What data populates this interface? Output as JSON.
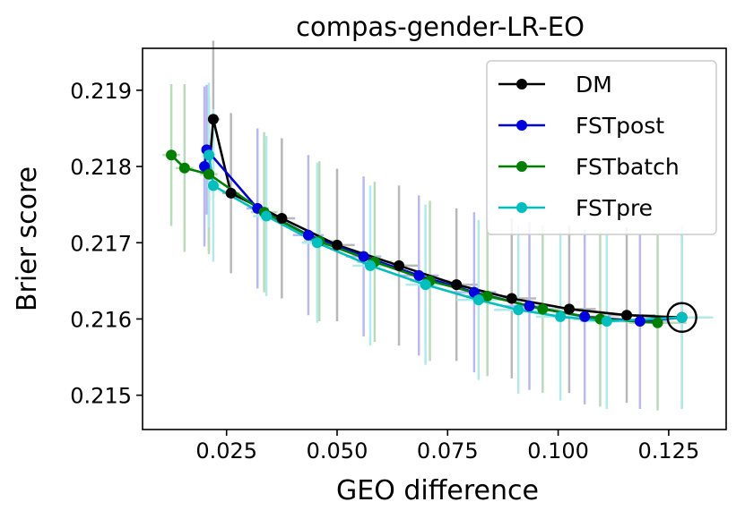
{
  "chart_data": {
    "type": "line",
    "title": "compas-gender-LR-EO",
    "xlabel": "GEO difference",
    "ylabel": "Brier score",
    "xlim": [
      0.006,
      0.138
    ],
    "ylim": [
      0.21455,
      0.21955
    ],
    "xticks": [
      0.025,
      0.05,
      0.075,
      0.1,
      0.125
    ],
    "xtick_labels": [
      "0.025",
      "0.050",
      "0.075",
      "0.100",
      "0.125"
    ],
    "yticks": [
      0.215,
      0.216,
      0.217,
      0.218,
      0.219
    ],
    "ytick_labels": [
      "0.215",
      "0.216",
      "0.217",
      "0.218",
      "0.219"
    ],
    "grid": false,
    "legend_position": "top-right",
    "series": [
      {
        "name": "DM",
        "color": "#000000",
        "error_color": "#b8b8b8",
        "points": [
          {
            "x": 0.022,
            "y": 0.21862,
            "y_err": 0.00103,
            "x_err": 0.0015
          },
          {
            "x": 0.021,
            "y": 0.2179,
            "y_err": 0.001,
            "x_err": 0.0012
          },
          {
            "x": 0.026,
            "y": 0.21765,
            "y_err": 0.00105,
            "x_err": 0.002
          },
          {
            "x": 0.0375,
            "y": 0.21732,
            "y_err": 0.00105,
            "x_err": 0.003
          },
          {
            "x": 0.05,
            "y": 0.21697,
            "y_err": 0.001,
            "x_err": 0.004
          },
          {
            "x": 0.064,
            "y": 0.2167,
            "y_err": 0.00105,
            "x_err": 0.0045
          },
          {
            "x": 0.077,
            "y": 0.21645,
            "y_err": 0.001,
            "x_err": 0.005
          },
          {
            "x": 0.0895,
            "y": 0.21627,
            "y_err": 0.00105,
            "x_err": 0.0055
          },
          {
            "x": 0.1025,
            "y": 0.21613,
            "y_err": 0.0011,
            "x_err": 0.006
          },
          {
            "x": 0.1155,
            "y": 0.21605,
            "y_err": 0.00115,
            "x_err": 0.0065
          },
          {
            "x": 0.128,
            "y": 0.21602,
            "y_err": 0.0012,
            "x_err": 0.007
          }
        ]
      },
      {
        "name": "FSTpost",
        "color": "#0000e0",
        "error_color": "#b8b8f4",
        "points": [
          {
            "x": 0.0205,
            "y": 0.21822,
            "y_err": 0.00085,
            "x_err": 0.001
          },
          {
            "x": 0.02,
            "y": 0.218,
            "y_err": 0.00105,
            "x_err": 0.001
          },
          {
            "x": 0.032,
            "y": 0.21745,
            "y_err": 0.00105,
            "x_err": 0.0025
          },
          {
            "x": 0.0435,
            "y": 0.2171,
            "y_err": 0.00105,
            "x_err": 0.0035
          },
          {
            "x": 0.056,
            "y": 0.21682,
            "y_err": 0.00105,
            "x_err": 0.004
          },
          {
            "x": 0.0685,
            "y": 0.21657,
            "y_err": 0.00105,
            "x_err": 0.0045
          },
          {
            "x": 0.081,
            "y": 0.21635,
            "y_err": 0.00105,
            "x_err": 0.005
          },
          {
            "x": 0.0935,
            "y": 0.21617,
            "y_err": 0.0011,
            "x_err": 0.0055
          },
          {
            "x": 0.106,
            "y": 0.21603,
            "y_err": 0.00115,
            "x_err": 0.006
          },
          {
            "x": 0.1185,
            "y": 0.21597,
            "y_err": 0.00115,
            "x_err": 0.0065
          },
          {
            "x": 0.128,
            "y": 0.21602,
            "y_err": 0.0012,
            "x_err": 0.007
          }
        ]
      },
      {
        "name": "FSTbatch",
        "color": "#008000",
        "error_color": "#b8dcb8",
        "points": [
          {
            "x": 0.0125,
            "y": 0.21815,
            "y_err": 0.00093,
            "x_err": 0.002
          },
          {
            "x": 0.0155,
            "y": 0.21798,
            "y_err": 0.0011,
            "x_err": 0.002
          },
          {
            "x": 0.021,
            "y": 0.2179,
            "y_err": 0.00105,
            "x_err": 0.002
          },
          {
            "x": 0.0335,
            "y": 0.2174,
            "y_err": 0.00105,
            "x_err": 0.003
          },
          {
            "x": 0.046,
            "y": 0.21702,
            "y_err": 0.00105,
            "x_err": 0.0035
          },
          {
            "x": 0.0585,
            "y": 0.21675,
            "y_err": 0.00105,
            "x_err": 0.004
          },
          {
            "x": 0.071,
            "y": 0.2165,
            "y_err": 0.00105,
            "x_err": 0.0045
          },
          {
            "x": 0.084,
            "y": 0.2163,
            "y_err": 0.00105,
            "x_err": 0.005
          },
          {
            "x": 0.0965,
            "y": 0.21613,
            "y_err": 0.0011,
            "x_err": 0.0055
          },
          {
            "x": 0.1095,
            "y": 0.216,
            "y_err": 0.00115,
            "x_err": 0.006
          },
          {
            "x": 0.1225,
            "y": 0.21595,
            "y_err": 0.00115,
            "x_err": 0.0065
          }
        ]
      },
      {
        "name": "FSTpre",
        "color": "#00bfbf",
        "error_color": "#b0eaea",
        "points": [
          {
            "x": 0.021,
            "y": 0.21815,
            "y_err": 0.00095,
            "x_err": 0.0015
          },
          {
            "x": 0.022,
            "y": 0.21775,
            "y_err": 0.001,
            "x_err": 0.0015
          },
          {
            "x": 0.034,
            "y": 0.21735,
            "y_err": 0.00105,
            "x_err": 0.003
          },
          {
            "x": 0.0455,
            "y": 0.217,
            "y_err": 0.00105,
            "x_err": 0.0035
          },
          {
            "x": 0.0575,
            "y": 0.2167,
            "y_err": 0.00105,
            "x_err": 0.004
          },
          {
            "x": 0.07,
            "y": 0.21645,
            "y_err": 0.00105,
            "x_err": 0.0045
          },
          {
            "x": 0.082,
            "y": 0.21625,
            "y_err": 0.00105,
            "x_err": 0.005
          },
          {
            "x": 0.091,
            "y": 0.21612,
            "y_err": 0.0011,
            "x_err": 0.0055
          },
          {
            "x": 0.1005,
            "y": 0.21603,
            "y_err": 0.0011,
            "x_err": 0.0055
          },
          {
            "x": 0.111,
            "y": 0.21597,
            "y_err": 0.00115,
            "x_err": 0.006
          },
          {
            "x": 0.128,
            "y": 0.21602,
            "y_err": 0.0012,
            "x_err": 0.007
          }
        ]
      }
    ],
    "highlight": {
      "x": 0.128,
      "y": 0.21602,
      "shape": "circle"
    }
  }
}
